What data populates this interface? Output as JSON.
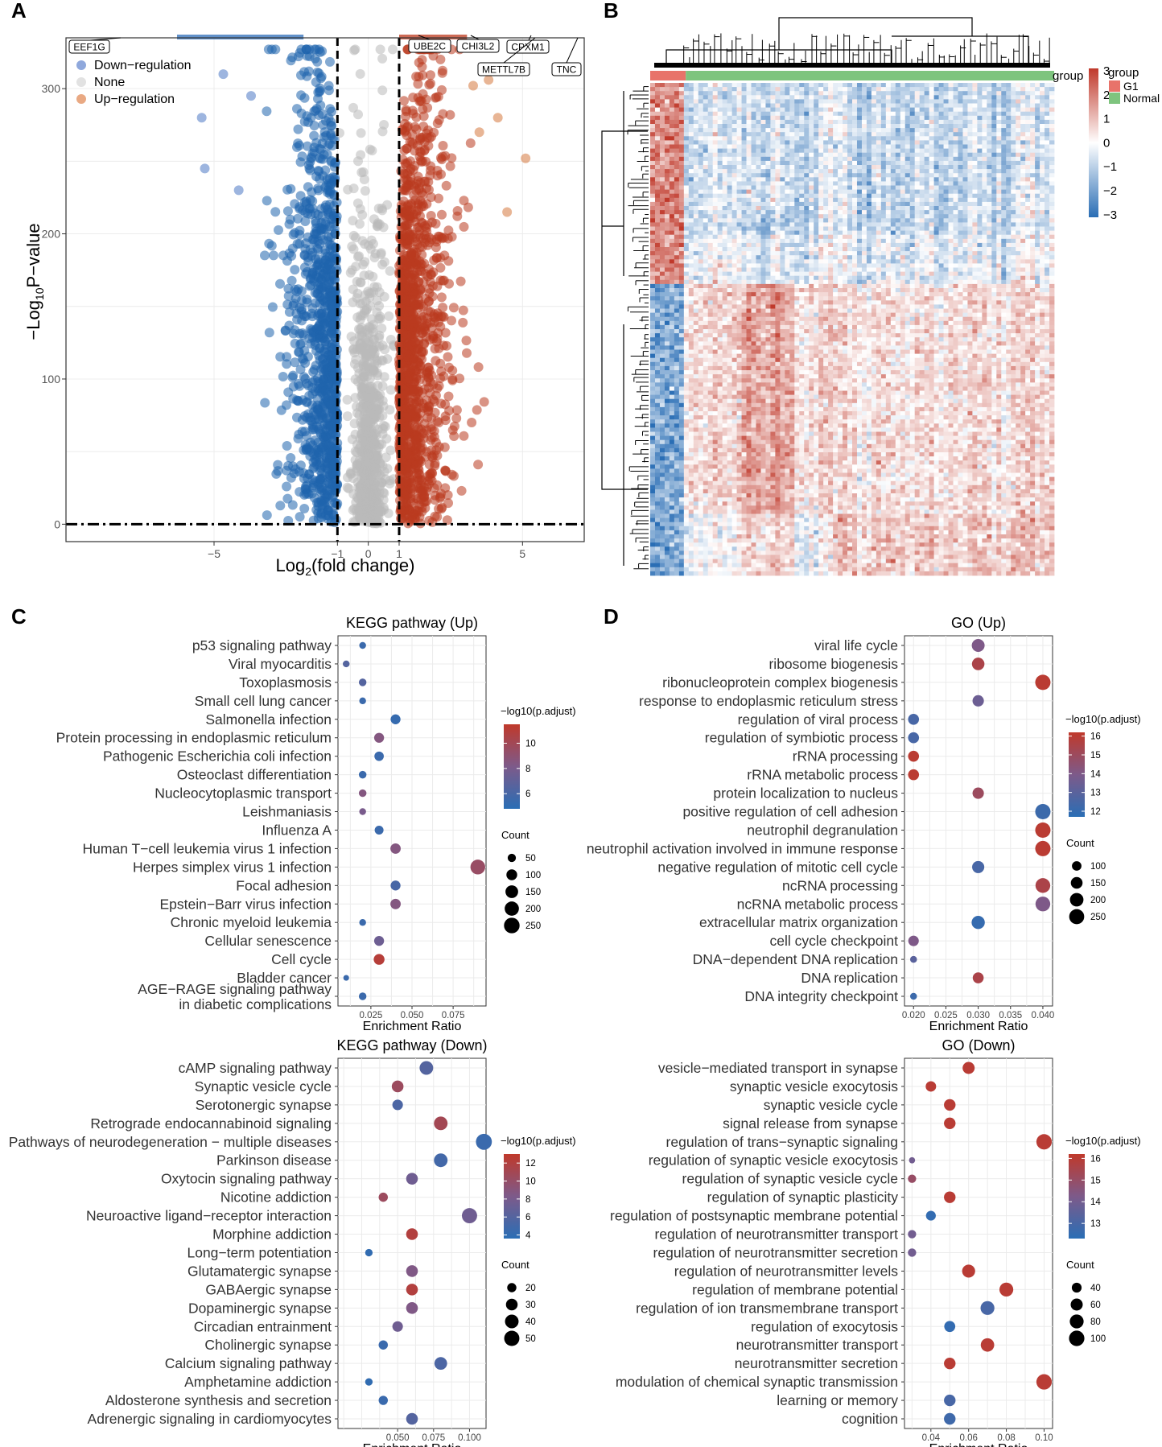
{
  "panel_letters": [
    "A",
    "B",
    "C",
    "D"
  ],
  "chart_data": [
    {
      "panel": "A",
      "type": "scatter",
      "title": "",
      "xlabel": "Log2(fold change)",
      "xlabel_main": "Log",
      "xlabel_sub": "2",
      "xlabel_rest": "(fold change)",
      "ylabel": "-Log10P-value",
      "ylabel_main": "−Log",
      "ylabel_sub": "10",
      "ylabel_rest": "P−value",
      "xlim": [
        -9.8,
        7.0
      ],
      "ylim": [
        -12,
        335
      ],
      "x_ticks": [
        -5,
        -1,
        0,
        1,
        5
      ],
      "x_tick_labels": [
        "−5",
        "−1",
        "0",
        "1",
        "5"
      ],
      "y_ticks": [
        0,
        100,
        200,
        300
      ],
      "y_tick_labels": [
        "0",
        "100",
        "200",
        "300"
      ],
      "thresholds": {
        "log2fc": [
          -1,
          1
        ],
        "neglog10p": 0
      },
      "legend": [
        {
          "label": "Down−regulation",
          "color": "#8fa8dc"
        },
        {
          "label": "None",
          "color": "#e2e2e2"
        },
        {
          "label": "Up−regulation",
          "color": "#e9a983"
        }
      ],
      "series": [
        {
          "name": "Down−regulation",
          "color": "#1f64ad",
          "x_range": [
            -3.6,
            -1.0
          ],
          "n": 950
        },
        {
          "name": "None",
          "color": "#b9b9b9",
          "x_range": [
            -1.0,
            1.0
          ],
          "n": 700
        },
        {
          "name": "Up−regulation",
          "color": "#b93a1f",
          "x_range": [
            1.0,
            3.6
          ],
          "n": 1150
        }
      ],
      "labelled_genes": [
        "EEF1G",
        "UBE2C",
        "CHI3L2",
        "CPXM1",
        "METTL7B",
        "TNC"
      ]
    },
    {
      "panel": "B",
      "type": "heatmap",
      "column_groups": [
        {
          "name": "G1",
          "color": "#e8736a",
          "fraction": 0.088
        },
        {
          "name": "Normal",
          "color": "#7ec47e",
          "fraction": 0.912
        }
      ],
      "group_label": "group",
      "legend_title": "group",
      "color_scale": {
        "min": -3,
        "max": 3,
        "low": "#2a6eb5",
        "mid": "#ffffff",
        "high": "#c0392b"
      },
      "scale_ticks": [
        "3",
        "2",
        "1",
        "0",
        "−1",
        "−2",
        "−3"
      ]
    },
    {
      "panel": "C",
      "type": "scatter",
      "title": "KEGG pathway (Up)",
      "xlabel": "Enrichment Ratio",
      "xlim": [
        0.005,
        0.095
      ],
      "x_ticks": [
        0.025,
        0.05,
        0.075
      ],
      "x_tick_labels": [
        "0.025",
        "0.050",
        "0.075"
      ],
      "color_title": "−log10(p.adjust)",
      "color_range": [
        4.8,
        11.5
      ],
      "color_ticks": [
        6,
        8,
        10
      ],
      "size_title": "Count",
      "size_range": [
        10,
        270
      ],
      "size_ticks": [
        50,
        100,
        150,
        200,
        250
      ],
      "categories": [
        "p53 signaling pathway",
        "Viral myocarditis",
        "Toxoplasmosis",
        "Small cell lung cancer",
        "Salmonella infection",
        "Protein processing in endoplasmic reticulum",
        "Pathogenic Escherichia coli infection",
        "Osteoclast differentiation",
        "Nucleocytoplasmic transport",
        "Leishmaniasis",
        "Influenza A",
        "Human T−cell leukemia virus 1 infection",
        "Herpes simplex virus 1 infection",
        "Focal adhesion",
        "Epstein−Barr virus infection",
        "Chronic myeloid leukemia",
        "Cellular senescence",
        "Cell cycle",
        "Bladder cancer",
        "AGE−RAGE signaling pathway in diabetic complications"
      ],
      "label_lines": [
        [
          "p53 signaling pathway"
        ],
        [
          "Viral myocarditis"
        ],
        [
          "Toxoplasmosis"
        ],
        [
          "Small cell lung cancer"
        ],
        [
          "Salmonella infection"
        ],
        [
          "Protein processing in endoplasmic reticulum"
        ],
        [
          "Pathogenic Escherichia coli infection"
        ],
        [
          "Osteoclast differentiation"
        ],
        [
          "Nucleocytoplasmic transport"
        ],
        [
          "Leishmaniasis"
        ],
        [
          "Influenza A"
        ],
        [
          "Human T−cell leukemia virus 1 infection"
        ],
        [
          "Herpes simplex virus 1 infection"
        ],
        [
          "Focal adhesion"
        ],
        [
          "Epstein−Barr virus infection"
        ],
        [
          "Chronic myeloid leukemia"
        ],
        [
          "Cellular senescence"
        ],
        [
          "Cell cycle"
        ],
        [
          "Bladder cancer"
        ],
        [
          "AGE−RAGE signaling pathway",
          "in diabetic complications"
        ]
      ],
      "x": [
        0.02,
        0.01,
        0.02,
        0.02,
        0.04,
        0.03,
        0.03,
        0.02,
        0.02,
        0.02,
        0.03,
        0.04,
        0.09,
        0.04,
        0.04,
        0.02,
        0.03,
        0.03,
        0.01,
        0.02
      ],
      "color": [
        5.5,
        6.5,
        6.5,
        5.5,
        5.3,
        8.5,
        5.5,
        5.5,
        8.5,
        8.0,
        5.5,
        8.5,
        9.5,
        6.0,
        8.5,
        5.5,
        7.5,
        11.0,
        5.5,
        5.5
      ],
      "count": [
        30,
        30,
        40,
        30,
        80,
        80,
        70,
        40,
        40,
        30,
        60,
        90,
        220,
        80,
        90,
        30,
        80,
        100,
        20,
        40
      ]
    },
    {
      "panel": "D",
      "type": "scatter",
      "title": "GO (Up)",
      "xlabel": "Enrichment Ratio",
      "xlim": [
        0.0186,
        0.0415
      ],
      "x_ticks": [
        0.02,
        0.025,
        0.03,
        0.035,
        0.04
      ],
      "x_tick_labels": [
        "0.020",
        "0.025",
        "0.030",
        "0.035",
        "0.040"
      ],
      "color_title": "−log10(p.adjust)",
      "color_range": [
        11.7,
        16.2
      ],
      "color_ticks": [
        12,
        13,
        14,
        15,
        16
      ],
      "size_title": "Count",
      "size_range": [
        40,
        290
      ],
      "size_ticks": [
        100,
        150,
        200,
        250
      ],
      "categories": [
        "viral life cycle",
        "ribosome biogenesis",
        "ribonucleoprotein complex biogenesis",
        "response to endoplasmic reticulum stress",
        "regulation of viral process",
        "regulation of symbiotic process",
        "rRNA processing",
        "rRNA metabolic process",
        "protein localization to nucleus",
        "positive regulation of cell adhesion",
        "neutrophil degranulation",
        "neutrophil activation involved in immune response",
        "negative regulation of mitotic cell cycle",
        "ncRNA processing",
        "ncRNA metabolic process",
        "extracellular matrix organization",
        "cell cycle checkpoint",
        "DNA−dependent DNA replication",
        "DNA replication",
        "DNA integrity checkpoint"
      ],
      "x": [
        0.03,
        0.03,
        0.04,
        0.03,
        0.02,
        0.02,
        0.02,
        0.02,
        0.03,
        0.04,
        0.04,
        0.04,
        0.03,
        0.04,
        0.04,
        0.03,
        0.02,
        0.02,
        0.03,
        0.02
      ],
      "color": [
        14.0,
        15.5,
        16.0,
        13.5,
        12.5,
        12.5,
        16.0,
        16.0,
        15.0,
        12.2,
        16.0,
        16.0,
        12.5,
        15.5,
        14.0,
        12.0,
        14.0,
        13.0,
        15.5,
        12.2
      ],
      "count": [
        180,
        170,
        260,
        140,
        130,
        130,
        130,
        130,
        140,
        260,
        260,
        260,
        160,
        240,
        240,
        190,
        120,
        60,
        130,
        60
      ]
    },
    {
      "panel": "C",
      "type": "scatter",
      "title": "KEGG pathway (Down)",
      "xlabel": "Enrichment Ratio",
      "xlim": [
        0.0085,
        0.1115
      ],
      "x_ticks": [
        0.05,
        0.075,
        0.1
      ],
      "x_tick_labels": [
        "0.050",
        "0.075",
        "0.100"
      ],
      "color_title": "−log10(p.adjust)",
      "color_range": [
        3.6,
        13.0
      ],
      "color_ticks": [
        4,
        6,
        8,
        10,
        12
      ],
      "size_title": "Count",
      "size_range": [
        10,
        56
      ],
      "size_ticks": [
        20,
        30,
        40,
        50
      ],
      "categories": [
        "cAMP signaling pathway",
        "Synaptic vesicle cycle",
        "Serotonergic synapse",
        "Retrograde endocannabinoid signaling",
        "Pathways of neurodegeneration − multiple diseases",
        "Parkinson disease",
        "Oxytocin signaling pathway",
        "Nicotine addiction",
        "Neuroactive ligand−receptor interaction",
        "Morphine addiction",
        "Long−term potentiation",
        "Glutamatergic synapse",
        "GABAergic synapse",
        "Dopaminergic synapse",
        "Circadian entrainment",
        "Cholinergic synapse",
        "Calcium signaling pathway",
        "Amphetamine addiction",
        "Aldosterone synthesis and secretion",
        "Adrenergic signaling in cardiomyocytes"
      ],
      "x": [
        0.07,
        0.05,
        0.05,
        0.08,
        0.11,
        0.08,
        0.06,
        0.04,
        0.1,
        0.06,
        0.03,
        0.06,
        0.06,
        0.06,
        0.05,
        0.04,
        0.08,
        0.03,
        0.04,
        0.06
      ],
      "color": [
        6.0,
        10.5,
        5.5,
        11.0,
        4.5,
        5.0,
        7.5,
        10.5,
        7.5,
        12.0,
        4.0,
        8.5,
        12.0,
        8.5,
        7.5,
        4.5,
        5.5,
        4.0,
        4.5,
        6.0
      ],
      "count": [
        40,
        30,
        25,
        40,
        55,
        40,
        30,
        20,
        50,
        30,
        15,
        30,
        30,
        30,
        25,
        20,
        35,
        15,
        20,
        30
      ]
    },
    {
      "panel": "D",
      "type": "scatter",
      "title": "GO (Down)",
      "xlabel": "Enrichment Ratio",
      "xlim": [
        0.026,
        0.1045
      ],
      "x_ticks": [
        0.04,
        0.06,
        0.08,
        0.1
      ],
      "x_tick_labels": [
        "0.04",
        "0.06",
        "0.08",
        "0.10"
      ],
      "color_title": "−log10(p.adjust)",
      "color_range": [
        12.3,
        16.2
      ],
      "color_ticks": [
        13,
        14,
        15,
        16
      ],
      "size_title": "Count",
      "size_range": [
        15,
        110
      ],
      "size_ticks": [
        40,
        60,
        80,
        100
      ],
      "categories": [
        "vesicle−mediated transport in synapse",
        "synaptic vesicle exocytosis",
        "synaptic vesicle cycle",
        "signal release from synapse",
        "regulation of trans−synaptic signaling",
        "regulation of synaptic vesicle exocytosis",
        "regulation of synaptic vesicle cycle",
        "regulation of synaptic plasticity",
        "regulation of postsynaptic membrane potential",
        "regulation of neurotransmitter transport",
        "regulation of neurotransmitter secretion",
        "regulation of neurotransmitter levels",
        "regulation of membrane potential",
        "regulation of ion transmembrane transport",
        "regulation of exocytosis",
        "neurotransmitter transport",
        "neurotransmitter secretion",
        "modulation of chemical synaptic transmission",
        "learning or memory",
        "cognition"
      ],
      "x": [
        0.06,
        0.04,
        0.05,
        0.05,
        0.1,
        0.03,
        0.03,
        0.05,
        0.04,
        0.03,
        0.03,
        0.06,
        0.08,
        0.07,
        0.05,
        0.07,
        0.05,
        0.1,
        0.05,
        0.05
      ],
      "color": [
        16.0,
        16.0,
        16.0,
        16.0,
        16.0,
        14.0,
        15.0,
        16.0,
        12.5,
        14.0,
        14.0,
        16.0,
        16.0,
        13.0,
        12.5,
        16.0,
        16.0,
        16.0,
        13.0,
        12.8
      ],
      "count": [
        60,
        45,
        55,
        55,
        100,
        20,
        30,
        55,
        40,
        30,
        30,
        70,
        80,
        80,
        50,
        75,
        55,
        100,
        55,
        55
      ]
    }
  ]
}
